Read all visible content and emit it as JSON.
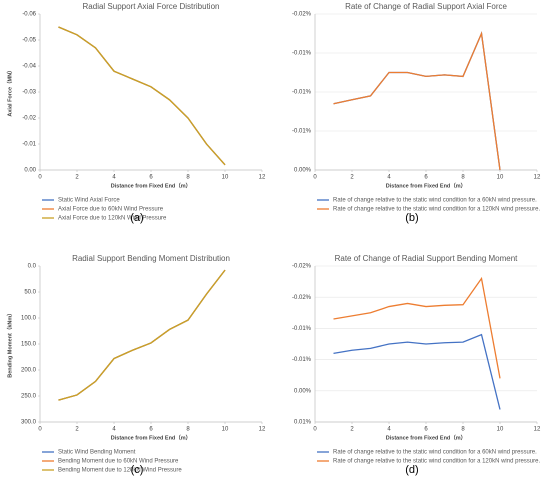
{
  "chart_data": [
    {
      "type": "line",
      "panel": "(a)",
      "title": "Radial Support Axial Force Distribution",
      "xlabel": "Distance from Fixed End（m）",
      "ylabel": "Axial Force（MN）",
      "x": [
        1,
        2,
        3,
        4,
        5,
        6,
        7,
        8,
        9,
        10
      ],
      "series": [
        {
          "name": "Static Wind Axial Force",
          "color": "#4472c4",
          "values": [
            -0.055,
            -0.052,
            -0.047,
            -0.038,
            -0.035,
            -0.032,
            -0.027,
            -0.02,
            -0.01,
            -0.002
          ]
        },
        {
          "name": "Axial Force due to 60kN Wind Pressure",
          "color": "#ed7d31",
          "values": [
            -0.055,
            -0.052,
            -0.047,
            -0.038,
            -0.035,
            -0.032,
            -0.027,
            -0.02,
            -0.01,
            -0.002
          ]
        },
        {
          "name": "Axial Force due to 120kN Wind Pressure",
          "color": "#c9a227",
          "values": [
            -0.055,
            -0.052,
            -0.047,
            -0.038,
            -0.035,
            -0.032,
            -0.027,
            -0.02,
            -0.01,
            -0.002
          ]
        }
      ],
      "xlim": [
        0,
        12
      ],
      "xticks": [
        0,
        2,
        4,
        6,
        8,
        10,
        12
      ],
      "ylim": [
        0,
        -0.06
      ],
      "yticks": [
        {
          "value": 0,
          "label": "0.00"
        },
        -0.01,
        -0.02,
        -0.03,
        -0.04,
        -0.05,
        -0.06
      ],
      "grid": false
    },
    {
      "type": "line",
      "panel": "(b)",
      "title": "Rate of Change of Radial Support Axial Force",
      "xlabel": "Distance from Fixed End（m）",
      "x": [
        1,
        2,
        3,
        4,
        5,
        6,
        7,
        8,
        9,
        10
      ],
      "series": [
        {
          "name": "Rate of change relative to the static wind condition for a 60kN wind pressure.",
          "color": "#4472c4",
          "values": [
            -0.0085,
            -0.009,
            -0.0095,
            -0.0125,
            -0.0125,
            -0.012,
            -0.0122,
            -0.012,
            -0.0175,
            0
          ]
        },
        {
          "name": "Rate of change relative to the static wind condition for a 120kN wind pressure.",
          "color": "#ed7d31",
          "values": [
            -0.0085,
            -0.009,
            -0.0095,
            -0.0125,
            -0.0125,
            -0.012,
            -0.0122,
            -0.012,
            -0.0175,
            0
          ]
        }
      ],
      "xlim": [
        0,
        12
      ],
      "xticks": [
        0,
        2,
        4,
        6,
        8,
        10,
        12
      ],
      "ylim": [
        0,
        -0.02
      ],
      "yticks": [
        {
          "value": 0,
          "label": "0.00%"
        },
        {
          "value": -0.005,
          "label": "-0.01%"
        },
        {
          "value": -0.01,
          "label": "-0.01%"
        },
        {
          "value": -0.015,
          "label": "-0.01%"
        },
        {
          "value": -0.02,
          "label": "-0.02%"
        }
      ],
      "grid": true
    },
    {
      "type": "line",
      "panel": "(c)",
      "title": "Radial Support Bending Moment Distribution",
      "xlabel": "Distance from Fixed End（m）",
      "ylabel": "Bending Moment（kNm）",
      "x": [
        1,
        2,
        3,
        4,
        5,
        6,
        7,
        8,
        9,
        10
      ],
      "series": [
        {
          "name": "Static Wind Bending Moment",
          "color": "#4472c4",
          "values": [
            258,
            248,
            222,
            178,
            162,
            148,
            122,
            104,
            54,
            8
          ]
        },
        {
          "name": "Bending Moment due to 60kN Wind Pressure",
          "color": "#ed7d31",
          "values": [
            258,
            248,
            222,
            178,
            162,
            148,
            122,
            104,
            54,
            8
          ]
        },
        {
          "name": "Bending Moment due to 120kN Wind Pressure",
          "color": "#c9a227",
          "values": [
            258,
            248,
            222,
            178,
            162,
            148,
            122,
            104,
            54,
            8
          ]
        }
      ],
      "xlim": [
        0,
        12
      ],
      "xticks": [
        0,
        2,
        4,
        6,
        8,
        10,
        12
      ],
      "ylim": [
        300,
        0
      ],
      "yticks": [
        {
          "value": 0,
          "label": "0.0"
        },
        {
          "value": 50,
          "label": "50.0"
        },
        {
          "value": 100,
          "label": "100.0"
        },
        {
          "value": 150,
          "label": "150.0"
        },
        {
          "value": 200,
          "label": "200.0"
        },
        {
          "value": 250,
          "label": "250.0"
        },
        {
          "value": 300,
          "label": "300.0"
        }
      ],
      "grid": false
    },
    {
      "type": "line",
      "panel": "(d)",
      "title": "Rate of Change of Radial Support Bending Moment",
      "xlabel": "Distance from Fixed End（m）",
      "x": [
        1,
        2,
        3,
        4,
        5,
        6,
        7,
        8,
        9,
        10
      ],
      "series": [
        {
          "name": "Rate of change relative to the static wind condition for a 60kN wind pressure.",
          "color": "#4472c4",
          "values": [
            -0.006,
            -0.0065,
            -0.0068,
            -0.0075,
            -0.0078,
            -0.0075,
            -0.0077,
            -0.0078,
            -0.009,
            0.003
          ]
        },
        {
          "name": "Rate of change relative to the static wind condition for a 120kN wind pressure.",
          "color": "#ed7d31",
          "values": [
            -0.0115,
            -0.012,
            -0.0125,
            -0.0135,
            -0.014,
            -0.0135,
            -0.0137,
            -0.0138,
            -0.018,
            -0.002
          ]
        }
      ],
      "xlim": [
        0,
        12
      ],
      "xticks": [
        0,
        2,
        4,
        6,
        8,
        10,
        12
      ],
      "ylim": [
        0.005,
        -0.02
      ],
      "yticks": [
        {
          "value": 0.005,
          "label": "0.01%"
        },
        {
          "value": 0,
          "label": "0.00%"
        },
        {
          "value": -0.005,
          "label": "-0.01%"
        },
        {
          "value": -0.01,
          "label": "-0.01%"
        },
        {
          "value": -0.015,
          "label": "-0.02%"
        },
        {
          "value": -0.02,
          "label": "-0.02%"
        }
      ],
      "grid": true
    }
  ]
}
